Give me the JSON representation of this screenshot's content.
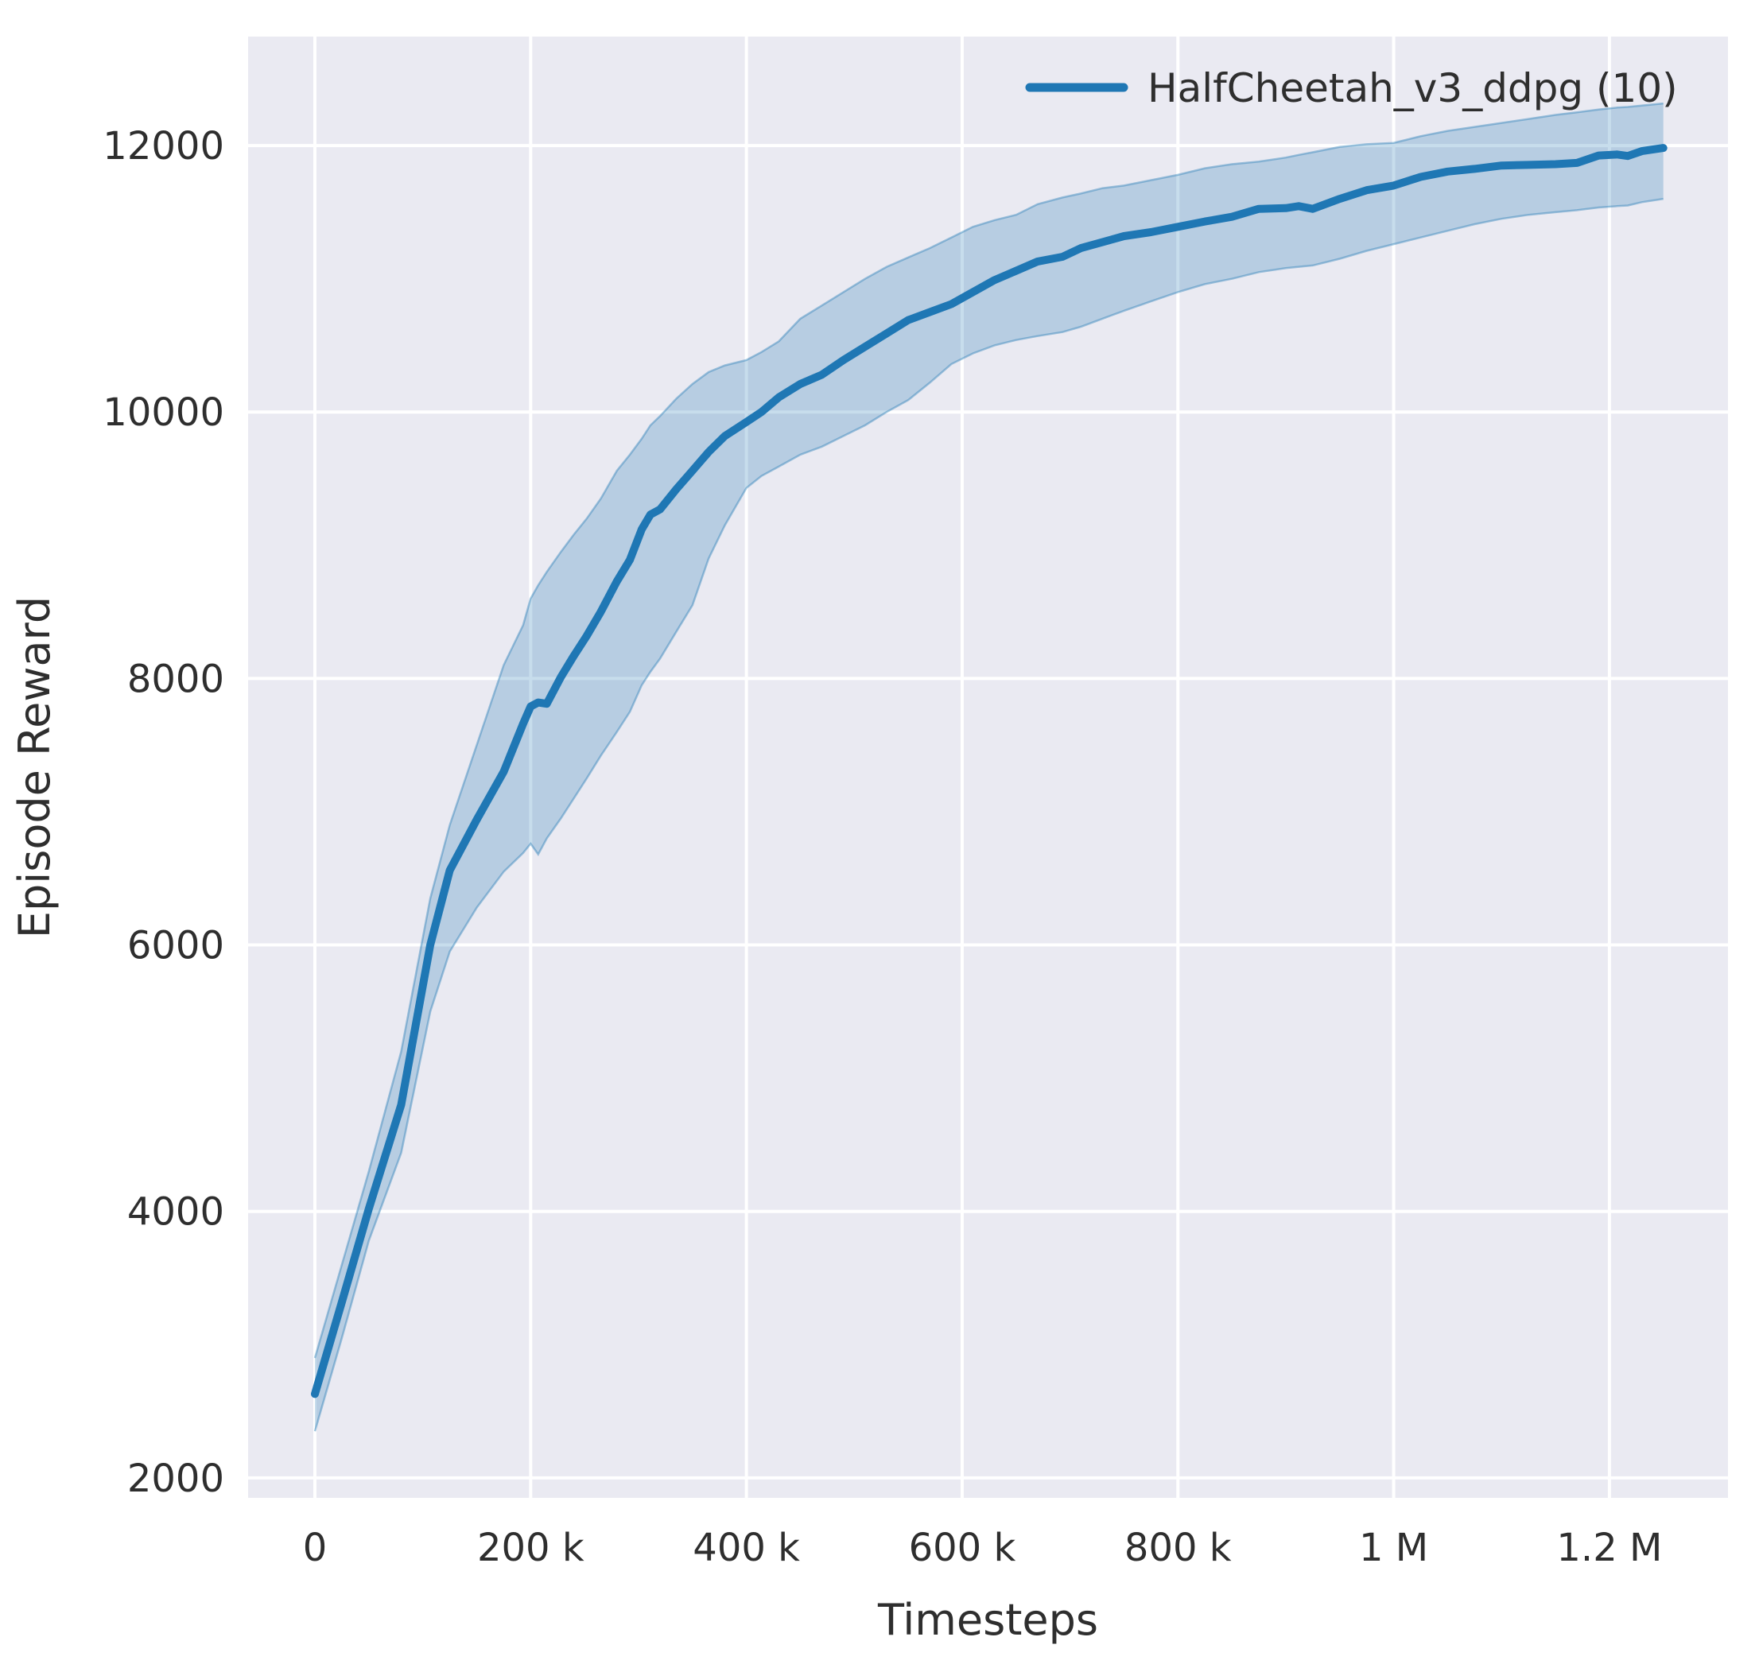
{
  "figure": {
    "background": "#ffffff"
  },
  "legend": {
    "label": "HalfCheetah_v3_ddpg (10)",
    "position": "upper right",
    "frame": false
  },
  "axes": {
    "xlabel": "Timesteps",
    "ylabel": "Episode Reward",
    "plot_background": "#eaeaf2",
    "grid_color": "#ffffff",
    "text_color": "#2e2e2e"
  },
  "chart_data": {
    "type": "line",
    "title": "",
    "xlabel": "Timesteps",
    "ylabel": "Episode Reward",
    "grid": true,
    "legend_position": "upper right",
    "background": "#eaeaf2",
    "grid_color": "#ffffff",
    "text_color": "#2e2e2e",
    "xlim": [
      -61900,
      1309900
    ],
    "ylim": [
      1850,
      12818
    ],
    "x_ticks": [
      {
        "value": 0,
        "label": "0"
      },
      {
        "value": 200000,
        "label": "200 k"
      },
      {
        "value": 400000,
        "label": "400 k"
      },
      {
        "value": 600000,
        "label": "600 k"
      },
      {
        "value": 800000,
        "label": "800 k"
      },
      {
        "value": 1000000,
        "label": "1 M"
      },
      {
        "value": 1200000,
        "label": "1.2 M"
      }
    ],
    "y_ticks": [
      {
        "value": 2000,
        "label": "2000"
      },
      {
        "value": 4000,
        "label": "4000"
      },
      {
        "value": 6000,
        "label": "6000"
      },
      {
        "value": 8000,
        "label": "8000"
      },
      {
        "value": 10000,
        "label": "10000"
      },
      {
        "value": 12000,
        "label": "12000"
      }
    ],
    "series": [
      {
        "name": "HalfCheetah_v3_ddpg (10)",
        "color": "#1f77b4",
        "band_alpha": 0.25,
        "line_width": 10,
        "x": [
          0,
          25000,
          50000,
          80000,
          107000,
          125000,
          150000,
          175000,
          193000,
          200000,
          207000,
          215000,
          228000,
          240000,
          252000,
          265000,
          280000,
          292000,
          303000,
          311000,
          320000,
          335000,
          350000,
          365000,
          380000,
          400000,
          414000,
          430000,
          450000,
          470000,
          490000,
          510000,
          530000,
          550000,
          570000,
          590000,
          610000,
          630000,
          650000,
          670000,
          693000,
          710000,
          730000,
          750000,
          775000,
          800000,
          825000,
          850000,
          875000,
          900000,
          912000,
          925000,
          950000,
          975000,
          1000000,
          1025000,
          1050000,
          1075000,
          1100000,
          1125000,
          1150000,
          1170000,
          1190000,
          1207000,
          1217000,
          1230000,
          1250000
        ],
        "mean": [
          2630,
          3320,
          4020,
          4800,
          6000,
          6560,
          6940,
          7300,
          7660,
          7790,
          7820,
          7810,
          8010,
          8170,
          8320,
          8500,
          8730,
          8890,
          9120,
          9230,
          9270,
          9420,
          9560,
          9700,
          9820,
          9925,
          10000,
          10110,
          10210,
          10280,
          10390,
          10490,
          10590,
          10690,
          10750,
          10810,
          10900,
          10990,
          11060,
          11130,
          11165,
          11230,
          11275,
          11320,
          11350,
          11390,
          11430,
          11465,
          11525,
          11530,
          11545,
          11525,
          11600,
          11665,
          11700,
          11765,
          11805,
          11825,
          11850,
          11855,
          11860,
          11870,
          11925,
          11933,
          11922,
          11958,
          11982
        ],
        "lower": [
          2350,
          3050,
          3780,
          4440,
          5500,
          5950,
          6280,
          6550,
          6690,
          6760,
          6680,
          6800,
          6950,
          7100,
          7250,
          7420,
          7600,
          7750,
          7950,
          8050,
          8150,
          8350,
          8550,
          8900,
          9150,
          9430,
          9520,
          9590,
          9680,
          9740,
          9820,
          9900,
          10000,
          10090,
          10220,
          10360,
          10440,
          10500,
          10540,
          10570,
          10600,
          10640,
          10700,
          10760,
          10830,
          10900,
          10960,
          11000,
          11050,
          11080,
          11090,
          11100,
          11150,
          11210,
          11260,
          11310,
          11360,
          11410,
          11450,
          11480,
          11500,
          11515,
          11535,
          11545,
          11550,
          11575,
          11600
        ],
        "upper": [
          2900,
          3600,
          4300,
          5200,
          6350,
          6900,
          7500,
          8100,
          8400,
          8600,
          8700,
          8800,
          8950,
          9080,
          9200,
          9350,
          9560,
          9680,
          9800,
          9900,
          9970,
          10100,
          10210,
          10300,
          10350,
          10390,
          10450,
          10530,
          10700,
          10800,
          10900,
          11000,
          11090,
          11160,
          11230,
          11310,
          11390,
          11440,
          11480,
          11560,
          11610,
          11640,
          11680,
          11700,
          11740,
          11780,
          11830,
          11860,
          11880,
          11910,
          11930,
          11950,
          11990,
          12010,
          12020,
          12070,
          12110,
          12140,
          12170,
          12200,
          12230,
          12250,
          12270,
          12285,
          12290,
          12300,
          12316
        ]
      }
    ]
  }
}
